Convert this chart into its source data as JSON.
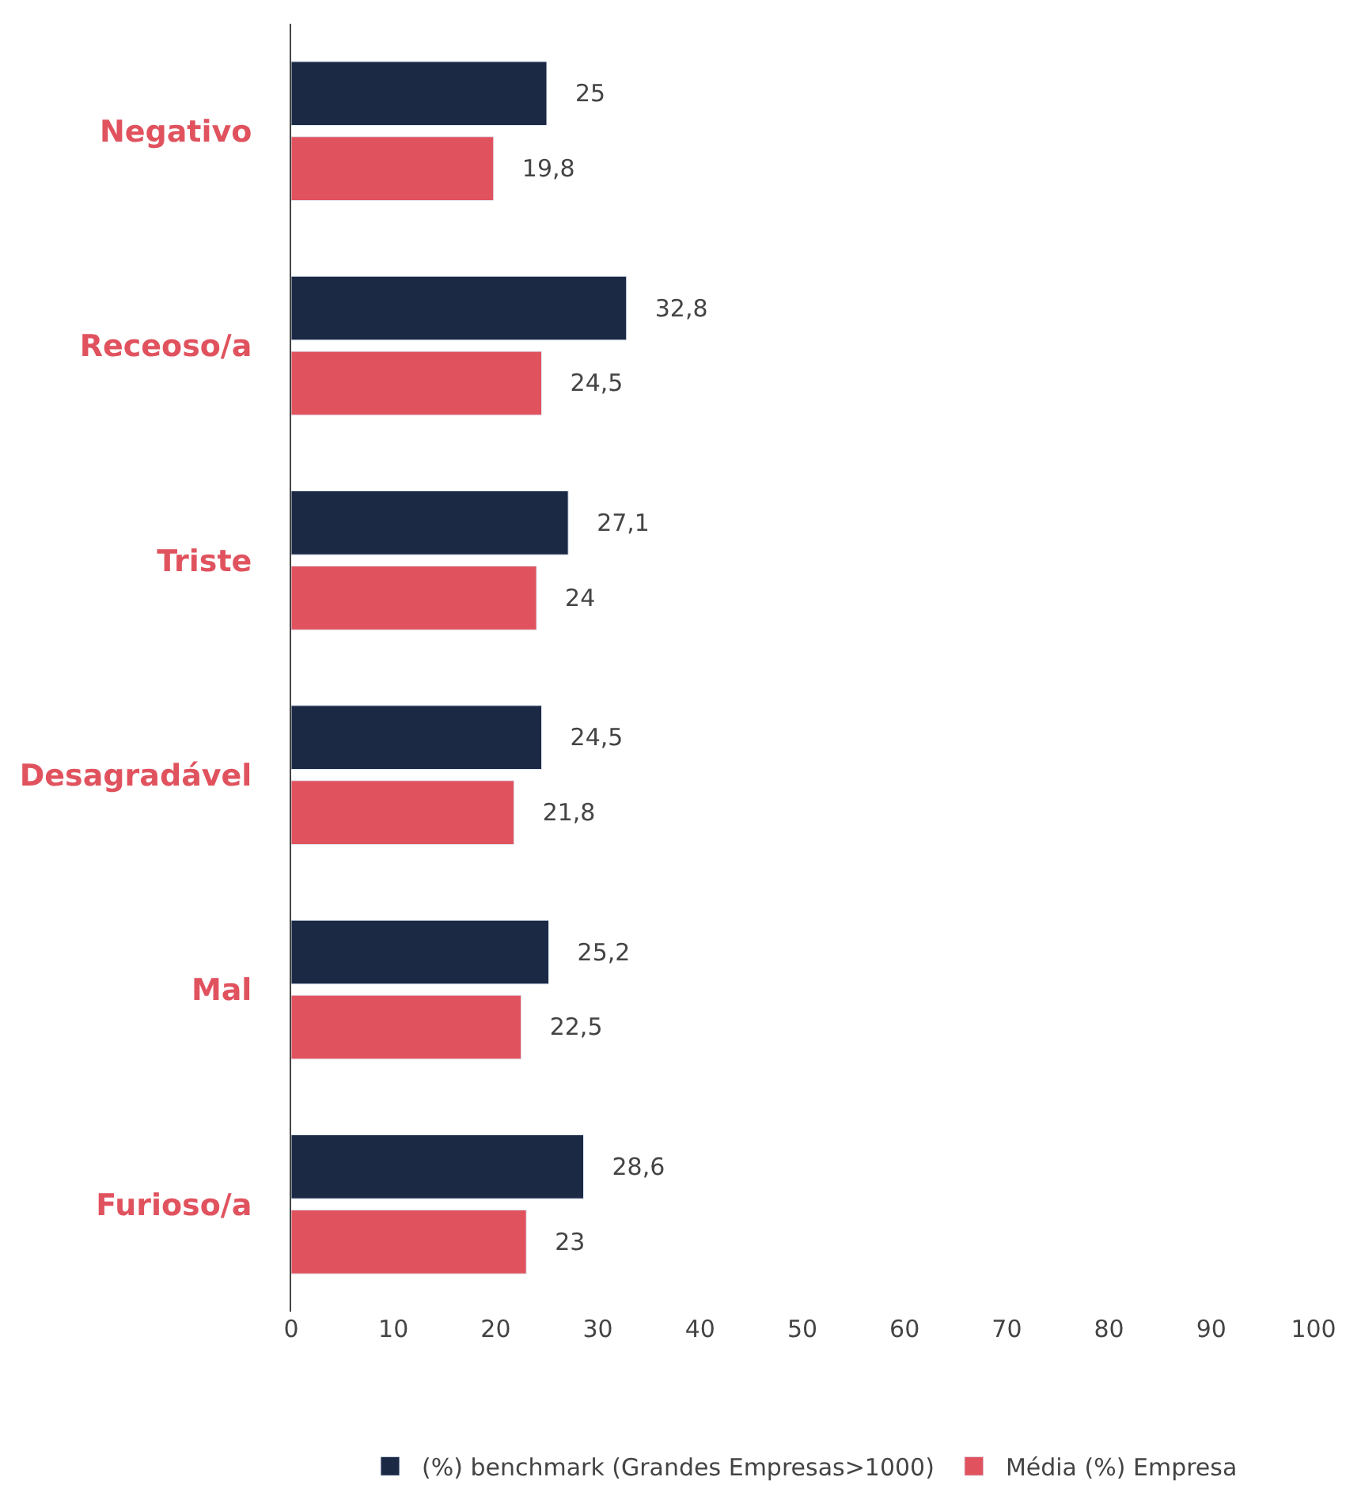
{
  "chart_data": {
    "type": "bar",
    "orientation": "horizontal",
    "categories": [
      "Negativo",
      "Receoso/a",
      "Triste",
      "Desagradável",
      "Mal",
      "Furioso/a"
    ],
    "series": [
      {
        "name": "(%) benchmark (Grandes Empresas>1000)",
        "color": "#1b2945",
        "values": [
          25,
          32.8,
          27.1,
          24.5,
          25.2,
          28.6
        ],
        "value_labels": [
          "25",
          "32,8",
          "27,1",
          "24,5",
          "25,2",
          "28,6"
        ]
      },
      {
        "name": "Média (%) Empresa",
        "color": "#e0535e",
        "values": [
          19.8,
          24.5,
          24,
          21.8,
          22.5,
          23
        ],
        "value_labels": [
          "19,8",
          "24,5",
          "24",
          "21,8",
          "22,5",
          "23"
        ]
      }
    ],
    "xlim": [
      0,
      100
    ],
    "xticks": [
      0,
      10,
      20,
      30,
      40,
      50,
      60,
      70,
      80,
      90,
      100
    ],
    "legend": "bottom"
  }
}
